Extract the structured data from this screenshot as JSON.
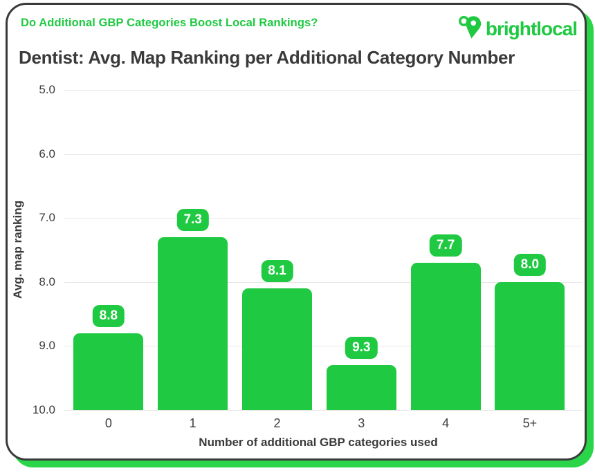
{
  "header": {
    "question": "Do Additional GBP Categories Boost Local Rankings?",
    "brand": "brightlocal"
  },
  "title": "Dentist: Avg. Map Ranking per Additional Category Number",
  "chart_data": {
    "type": "bar",
    "categories": [
      "0",
      "1",
      "2",
      "3",
      "4",
      "5+"
    ],
    "values": [
      8.8,
      7.3,
      8.1,
      9.3,
      7.7,
      8.0
    ],
    "value_labels": [
      "8.8",
      "7.3",
      "8.1",
      "9.3",
      "7.7",
      "8.0"
    ],
    "title": "Dentist: Avg. Map Ranking per Additional Category Number",
    "xlabel": "Number of additional GBP categories used",
    "ylabel": "Avg. map ranking",
    "y_ticks": [
      "5.0",
      "6.0",
      "7.0",
      "8.0",
      "9.0",
      "10.0"
    ],
    "ylim": [
      5.0,
      10.0
    ],
    "y_axis_inverted": true,
    "grid": true,
    "legend": false
  },
  "colors": {
    "accent_green": "#1fc941",
    "shadow_green": "#2bd54a",
    "bar_green": "#1fc941",
    "badge_green": "#1fc941",
    "badge_text": "#ffffff",
    "card_border": "#3a3a3a",
    "dark_text": "#3a3a3a",
    "tick_text": "#3d3d3d",
    "gridline": "#e8e8e8",
    "background": "#ffffff"
  }
}
